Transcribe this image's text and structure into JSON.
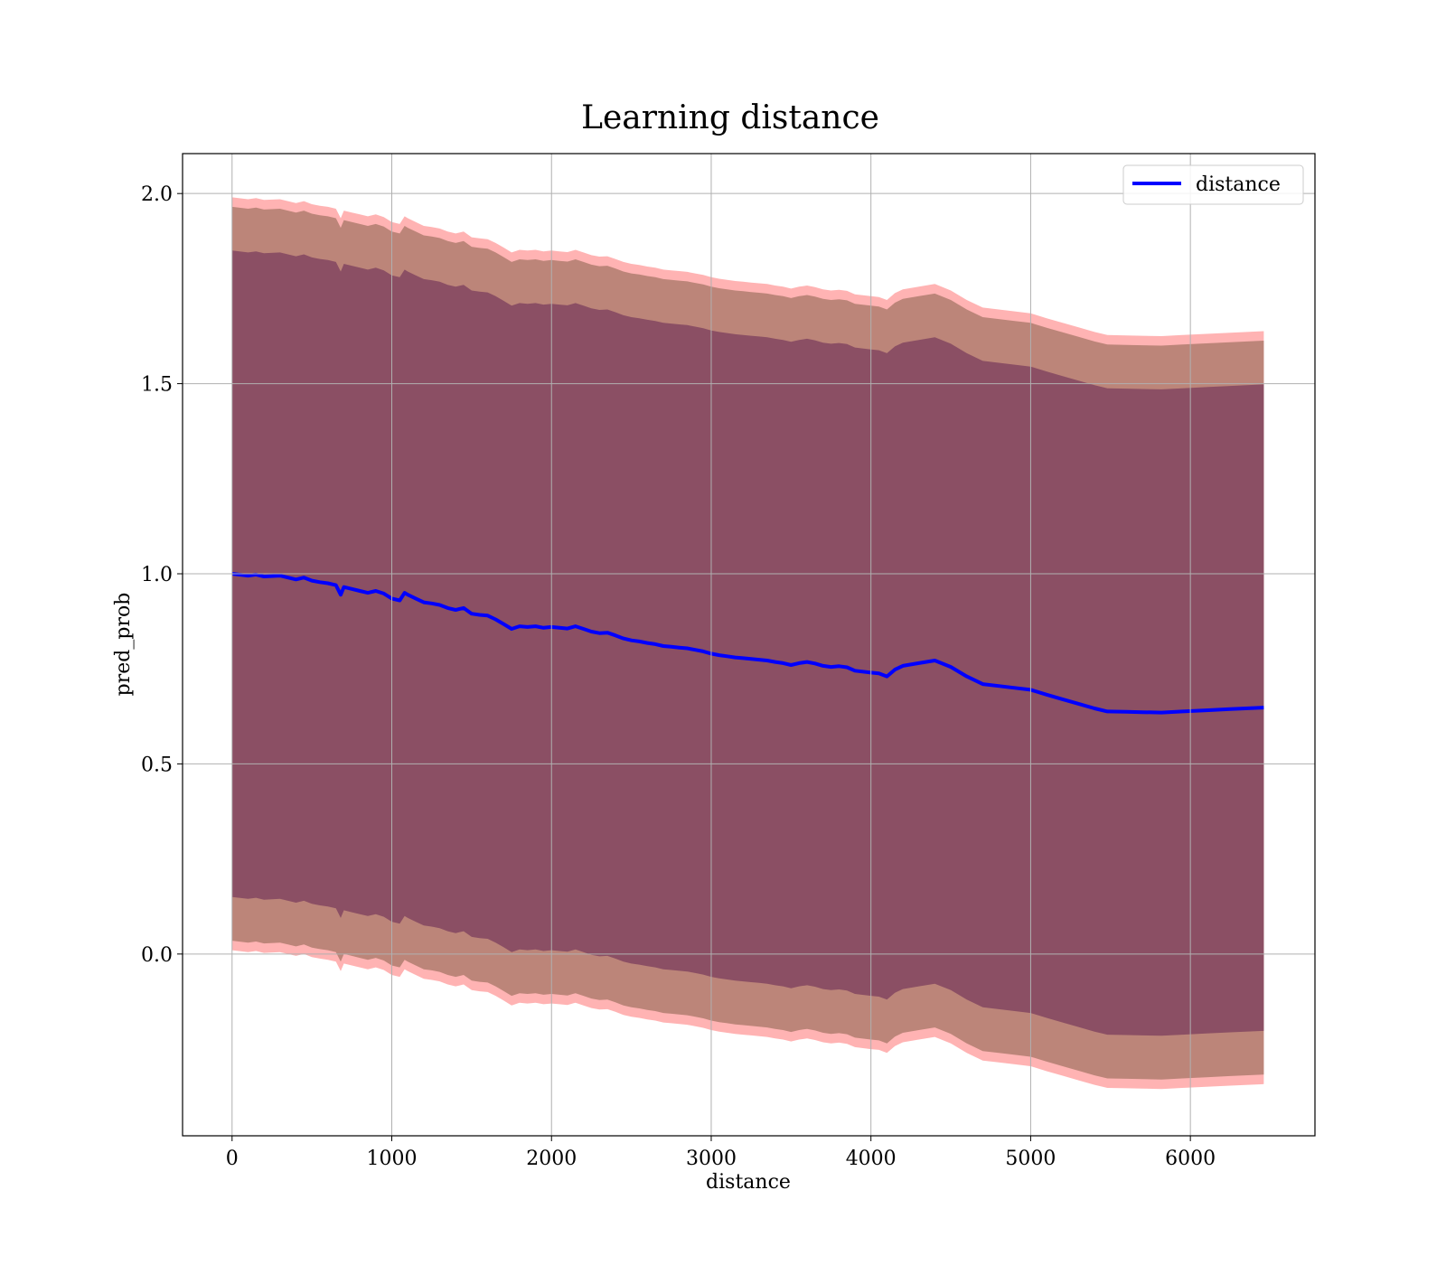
{
  "chart_data": {
    "type": "line",
    "title": "Learning distance",
    "xlabel": "distance",
    "ylabel": "pred_prob",
    "xlim": [
      -310,
      6780
    ],
    "ylim": [
      -0.478,
      2.105
    ],
    "xticks": [
      0,
      1000,
      2000,
      3000,
      4000,
      5000,
      6000
    ],
    "yticks": [
      0.0,
      0.5,
      1.0,
      1.5,
      2.0
    ],
    "xtick_labels": [
      "0",
      "1000",
      "2000",
      "3000",
      "4000",
      "5000",
      "6000"
    ],
    "ytick_labels": [
      "0.0",
      "0.5",
      "1.0",
      "1.5",
      "2.0"
    ],
    "grid": true,
    "legend": {
      "location": "upper right",
      "entries": [
        "distance"
      ]
    },
    "colors": {
      "line": "#0000ff",
      "band_outer": "#ff9999",
      "band_middle": "#b07d6e",
      "band_inner": "#8b4f64"
    },
    "series": [
      {
        "name": "distance",
        "x": [
          0,
          100,
          150,
          200,
          300,
          350,
          400,
          450,
          500,
          550,
          600,
          650,
          680,
          700,
          750,
          800,
          850,
          900,
          950,
          1000,
          1050,
          1080,
          1100,
          1150,
          1200,
          1250,
          1300,
          1350,
          1400,
          1450,
          1500,
          1550,
          1600,
          1650,
          1700,
          1750,
          1800,
          1850,
          1900,
          1950,
          2000,
          2050,
          2100,
          2150,
          2200,
          2250,
          2300,
          2350,
          2400,
          2450,
          2500,
          2550,
          2600,
          2650,
          2700,
          2750,
          2800,
          2850,
          2900,
          2950,
          3000,
          3050,
          3100,
          3150,
          3200,
          3250,
          3300,
          3350,
          3400,
          3450,
          3500,
          3550,
          3600,
          3650,
          3700,
          3750,
          3800,
          3850,
          3900,
          4000,
          4050,
          4100,
          4150,
          4200,
          4300,
          4400,
          4500,
          4600,
          4700,
          4800,
          4900,
          5000,
          5100,
          5200,
          5300,
          5400,
          5480,
          5600,
          5700,
          5820,
          5950,
          6100,
          6250,
          6460
        ],
        "values": [
          1.0,
          0.995,
          0.998,
          0.993,
          0.995,
          0.99,
          0.985,
          0.99,
          0.982,
          0.978,
          0.975,
          0.97,
          0.945,
          0.965,
          0.96,
          0.955,
          0.95,
          0.955,
          0.948,
          0.935,
          0.93,
          0.95,
          0.945,
          0.935,
          0.925,
          0.922,
          0.918,
          0.91,
          0.905,
          0.91,
          0.895,
          0.892,
          0.89,
          0.88,
          0.868,
          0.855,
          0.862,
          0.86,
          0.862,
          0.858,
          0.86,
          0.858,
          0.856,
          0.862,
          0.855,
          0.848,
          0.844,
          0.845,
          0.838,
          0.83,
          0.825,
          0.822,
          0.818,
          0.815,
          0.81,
          0.808,
          0.806,
          0.804,
          0.8,
          0.796,
          0.79,
          0.786,
          0.783,
          0.78,
          0.778,
          0.776,
          0.774,
          0.772,
          0.768,
          0.765,
          0.76,
          0.765,
          0.768,
          0.764,
          0.758,
          0.755,
          0.757,
          0.754,
          0.745,
          0.74,
          0.738,
          0.73,
          0.748,
          0.758,
          0.765,
          0.772,
          0.755,
          0.73,
          0.71,
          0.705,
          0.7,
          0.695,
          0.682,
          0.67,
          0.658,
          0.646,
          0.638,
          0.637,
          0.636,
          0.635,
          0.638,
          0.641,
          0.644,
          0.648
        ]
      }
    ],
    "bands": [
      {
        "sigma": 1,
        "half_width_start": 0.85,
        "half_width_end": 0.85
      },
      {
        "sigma": 2,
        "half_width_start": 0.965,
        "half_width_end": 0.965
      },
      {
        "sigma": 3,
        "half_width_start": 0.99,
        "half_width_end": 0.99
      }
    ]
  }
}
